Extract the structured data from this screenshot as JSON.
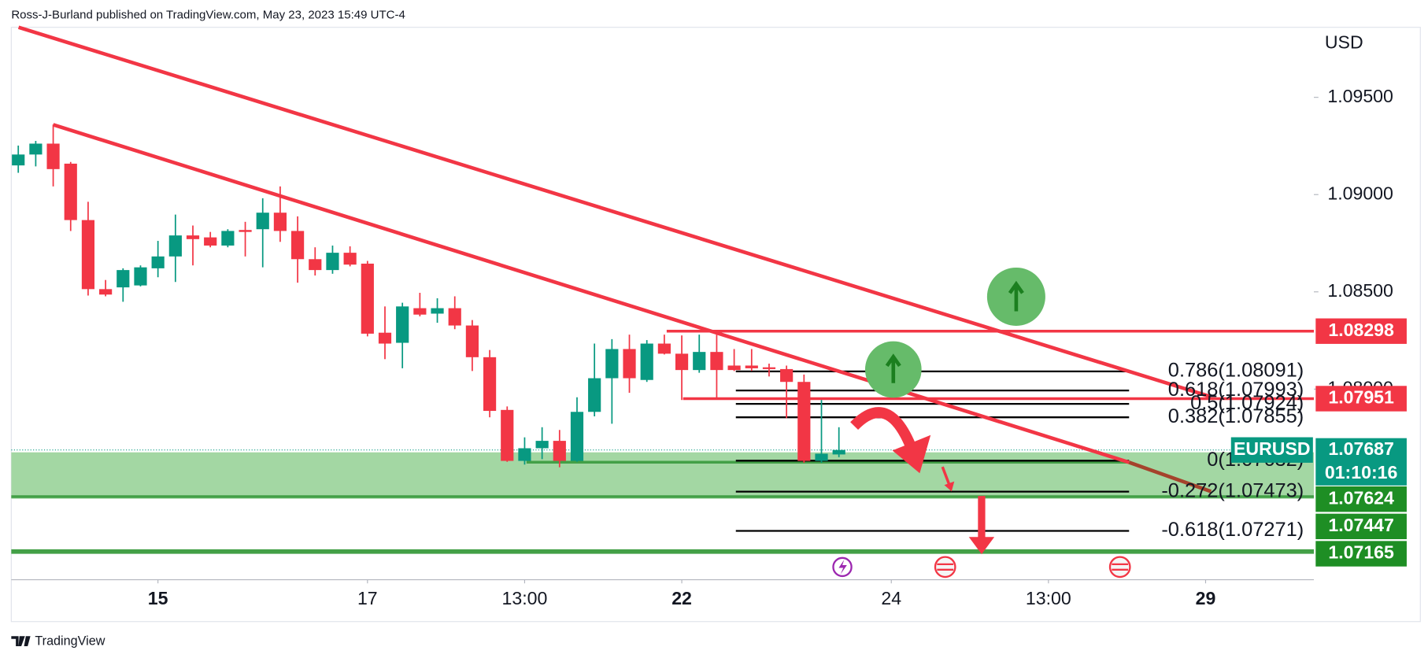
{
  "header": {
    "attribution": "Ross-J-Burland published on TradingView.com, May 23, 2023 15:49 UTC-4"
  },
  "chart_data": {
    "type": "candlestick",
    "currency": "USD",
    "open": [
      1.0915,
      1.09206,
      1.09262,
      1.09159,
      1.08869,
      1.08514,
      1.08523,
      1.08533,
      1.08621,
      1.08682,
      1.0879,
      1.0878,
      1.08738,
      1.08818,
      1.08822,
      1.08907,
      1.08813,
      1.08668,
      1.08612,
      1.08701,
      1.08645,
      1.0829,
      1.08238,
      1.08416,
      1.08388,
      1.08416,
      1.08327,
      1.08164,
      1.07893,
      1.07631,
      1.07696,
      1.07734,
      1.07631,
      1.07883,
      1.08056,
      1.08206,
      1.08047,
      1.08234,
      1.08182,
      1.08098,
      1.08191,
      1.08121,
      1.08121,
      1.08112,
      1.08103,
      1.08037,
      1.07631,
      1.07664
    ],
    "high": [
      1.09252,
      1.09276,
      1.0936,
      1.09168,
      1.08963,
      1.08561,
      1.08621,
      1.08636,
      1.08762,
      1.08897,
      1.08841,
      1.08808,
      1.08822,
      1.0886,
      1.08981,
      1.09042,
      1.08888,
      1.08729,
      1.08738,
      1.08734,
      1.08659,
      1.08425,
      1.08444,
      1.08495,
      1.08467,
      1.08477,
      1.08355,
      1.08201,
      1.07911,
      1.07752,
      1.07804,
      1.0779,
      1.07958,
      1.08234,
      1.08257,
      1.0828,
      1.08252,
      1.0828,
      1.08276,
      1.0828,
      1.0828,
      1.08206,
      1.08206,
      1.08131,
      1.08121,
      1.08075,
      1.07944,
      1.07804
    ],
    "low": [
      1.09112,
      1.09145,
      1.09042,
      1.08813,
      1.08481,
      1.08477,
      1.08449,
      1.08528,
      1.08575,
      1.08551,
      1.08636,
      1.08729,
      1.08729,
      1.08682,
      1.08626,
      1.08757,
      1.08547,
      1.08584,
      1.08593,
      1.08631,
      1.08271,
      1.08154,
      1.08107,
      1.08374,
      1.08341,
      1.08308,
      1.08093,
      1.07855,
      1.07626,
      1.07612,
      1.0764,
      1.07598,
      1.07626,
      1.0786,
      1.07822,
      1.07981,
      1.08037,
      1.08178,
      1.07944,
      1.08084,
      1.07953,
      1.08093,
      1.08093,
      1.08065,
      1.0785,
      1.07621,
      1.07621,
      1.0765
    ],
    "close": [
      1.09206,
      1.09262,
      1.09131,
      1.08869,
      1.08514,
      1.08486,
      1.08612,
      1.08626,
      1.08682,
      1.0879,
      1.08771,
      1.08738,
      1.08813,
      1.08808,
      1.08907,
      1.08813,
      1.08668,
      1.08612,
      1.08701,
      1.0864,
      1.08285,
      1.08234,
      1.08425,
      1.08383,
      1.08416,
      1.08327,
      1.08164,
      1.07888,
      1.07631,
      1.07696,
      1.07734,
      1.07631,
      1.07883,
      1.08056,
      1.08206,
      1.08056,
      1.08234,
      1.08182,
      1.08098,
      1.08191,
      1.08098,
      1.08098,
      1.08107,
      1.08103,
      1.08037,
      1.07631,
      1.07668,
      1.07687
    ],
    "colors": {
      "up": "#089981",
      "down": "#f23645"
    },
    "ylim": [
      1.0702,
      1.0986
    ],
    "yticks": [
      {
        "value": 1.095,
        "label": "1.09500"
      },
      {
        "value": 1.09,
        "label": "1.09000"
      },
      {
        "value": 1.085,
        "label": "1.08500"
      },
      {
        "value": 1.08,
        "label": "1.08000"
      }
    ],
    "xlim": [
      -0.4,
      74.2
    ],
    "xticks": [
      {
        "value": 8,
        "label": "15",
        "bold": true
      },
      {
        "value": 20,
        "label": "17"
      },
      {
        "value": 29,
        "label": "13:00"
      },
      {
        "value": 38,
        "label": "22",
        "bold": true
      },
      {
        "value": 50,
        "label": "24"
      },
      {
        "value": 59,
        "label": "13:00"
      },
      {
        "value": 68,
        "label": "29",
        "bold": true
      }
    ],
    "price_lines": [
      {
        "value": 1.08298,
        "color": "#f23645"
      },
      {
        "value": 1.07951,
        "color": "#f23645"
      },
      {
        "value": 1.07624,
        "color": "#1e8e24"
      },
      {
        "value": 1.07447,
        "color": "#1e8e24"
      },
      {
        "value": 1.07165,
        "color": "#1e8e24"
      }
    ],
    "last": {
      "symbol": "EURUSD",
      "value": 1.07687,
      "countdown": "01:10:16",
      "color": "#089981"
    },
    "fib_levels": [
      {
        "value": 1.08091,
        "label": "0.786(1.08091)"
      },
      {
        "value": 1.07993,
        "label": "0.618(1.07993)"
      },
      {
        "value": 1.07924,
        "label": "0.5(1.07924)"
      },
      {
        "value": 1.07855,
        "label": "0.382(1.07855)"
      },
      {
        "value": 1.07632,
        "label": "0(1.07632)"
      },
      {
        "value": 1.07473,
        "label": "-0.272(1.07473)"
      },
      {
        "value": 1.07271,
        "label": "-0.618(1.07271)"
      }
    ]
  },
  "footer": {
    "brand": "TradingView"
  }
}
